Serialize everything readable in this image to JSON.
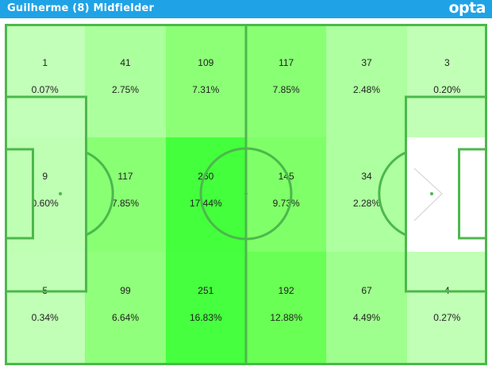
{
  "header": {
    "title": "Guilherme (8) Midfielder",
    "brand": "opta",
    "background_color": "#1fa3e6"
  },
  "heatmap": {
    "columns": 6,
    "rows": 3,
    "line_color": "#4cb84c",
    "zones": [
      {
        "count": "1",
        "pct": "0.07%",
        "color": "#c2ffb8"
      },
      {
        "count": "41",
        "pct": "2.75%",
        "color": "#abff9c"
      },
      {
        "count": "109",
        "pct": "7.31%",
        "color": "#8cff77"
      },
      {
        "count": "117",
        "pct": "7.85%",
        "color": "#89ff74"
      },
      {
        "count": "37",
        "pct": "2.48%",
        "color": "#adff9f"
      },
      {
        "count": "3",
        "pct": "0.20%",
        "color": "#c1ffb6"
      },
      {
        "count": "9",
        "pct": "0.60%",
        "color": "#bfffb4"
      },
      {
        "count": "117",
        "pct": "7.85%",
        "color": "#89ff74"
      },
      {
        "count": "260",
        "pct": "17.44%",
        "color": "#44ff3c"
      },
      {
        "count": "145",
        "pct": "9.73%",
        "color": "#7fff68"
      },
      {
        "count": "34",
        "pct": "2.28%",
        "color": "#aeffa0"
      },
      {
        "count": "",
        "pct": "",
        "color": "#ffffff"
      },
      {
        "count": "5",
        "pct": "0.34%",
        "color": "#c0ffb5"
      },
      {
        "count": "99",
        "pct": "6.64%",
        "color": "#90ff7b"
      },
      {
        "count": "251",
        "pct": "16.83%",
        "color": "#46ff3e"
      },
      {
        "count": "192",
        "pct": "12.88%",
        "color": "#6aff55"
      },
      {
        "count": "67",
        "pct": "4.49%",
        "color": "#9fff8e"
      },
      {
        "count": "4",
        "pct": "0.27%",
        "color": "#c1ffb6"
      }
    ]
  }
}
